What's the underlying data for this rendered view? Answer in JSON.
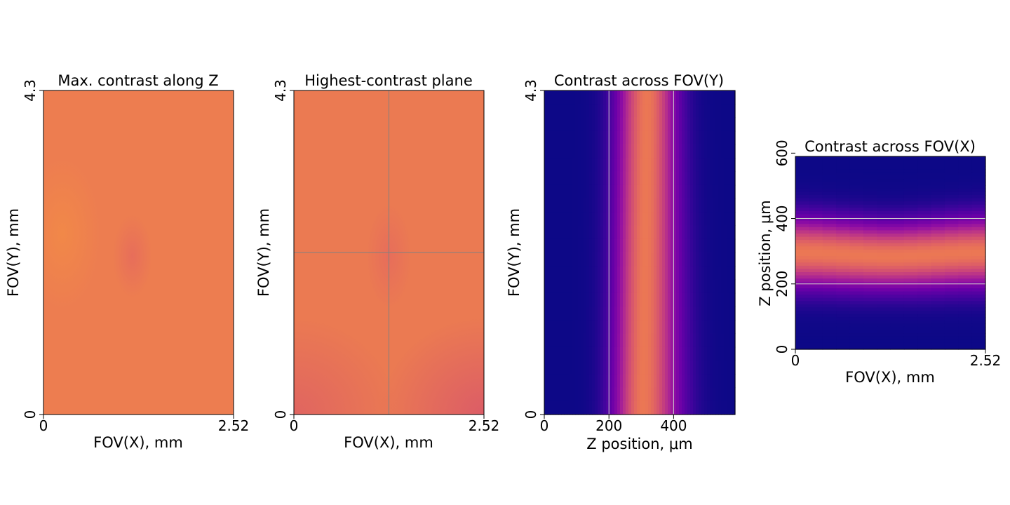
{
  "chart_data": [
    {
      "type": "heatmap",
      "title": "Max. contrast along Z",
      "xlabel": "FOV(X), mm",
      "ylabel": "FOV(Y), mm",
      "x_ticks": [
        "0",
        "2.52"
      ],
      "y_ticks": [
        "0",
        "4.3"
      ],
      "xlim": [
        0,
        2.52
      ],
      "ylim": [
        0,
        4.3
      ],
      "colormap": "plasma",
      "base_color": "#ed7d50",
      "features": [
        {
          "kind": "dip",
          "x": 1.18,
          "y": 2.1,
          "rx": 0.26,
          "ry": 0.55,
          "color": "#e66b5c"
        },
        {
          "kind": "glow",
          "x": 0.25,
          "y": 2.4,
          "rx": 0.5,
          "ry": 1.0,
          "color": "#f28a47"
        }
      ]
    },
    {
      "type": "heatmap",
      "title": "Highest-contrast plane",
      "xlabel": "FOV(X), mm",
      "ylabel": "FOV(Y), mm",
      "x_ticks": [
        "0",
        "2.52"
      ],
      "y_ticks": [
        "0",
        "4.3"
      ],
      "xlim": [
        0,
        2.52
      ],
      "ylim": [
        0,
        4.3
      ],
      "colormap": "plasma",
      "base_color": "#eb7a52",
      "crosshair": {
        "x": 1.26,
        "y": 2.15,
        "color": "#808080"
      },
      "features": [
        {
          "kind": "dip",
          "x": 1.26,
          "y": 2.1,
          "rx": 0.3,
          "ry": 0.7,
          "color": "#e66b5c"
        },
        {
          "kind": "corner",
          "x": 2.52,
          "y": 0,
          "color": "#d9576a"
        },
        {
          "kind": "corner",
          "x": 0,
          "y": 0,
          "color": "#de6163"
        }
      ]
    },
    {
      "type": "heatmap",
      "title": "Contrast across FOV(Y)",
      "xlabel": "Z position, μm",
      "ylabel": "FOV(Y), mm",
      "x_ticks": [
        "0",
        "200",
        "400"
      ],
      "x_tick_values": [
        0,
        200,
        400
      ],
      "y_ticks": [
        "0",
        "4.3"
      ],
      "xlim": [
        0,
        590
      ],
      "ylim": [
        0,
        4.3
      ],
      "colormap": "plasma",
      "reference_lines": [
        200,
        400
      ],
      "band": {
        "center_z_top": 318,
        "center_z_bottom": 305,
        "peak": 0.66,
        "sigma": 62
      }
    },
    {
      "type": "heatmap",
      "title": "Contrast across FOV(X)",
      "xlabel": "FOV(X), mm",
      "ylabel": "Z position, μm",
      "x_ticks": [
        "0",
        "2.52"
      ],
      "y_ticks": [
        "0",
        "200",
        "400",
        "600"
      ],
      "y_tick_values": [
        0,
        200,
        400,
        600
      ],
      "xlim": [
        0,
        2.52
      ],
      "ylim": [
        0,
        590
      ],
      "colormap": "plasma",
      "reference_lines": [
        200,
        400
      ],
      "band": {
        "center_z": 290,
        "peak": 0.66,
        "sigma": 68
      }
    }
  ]
}
